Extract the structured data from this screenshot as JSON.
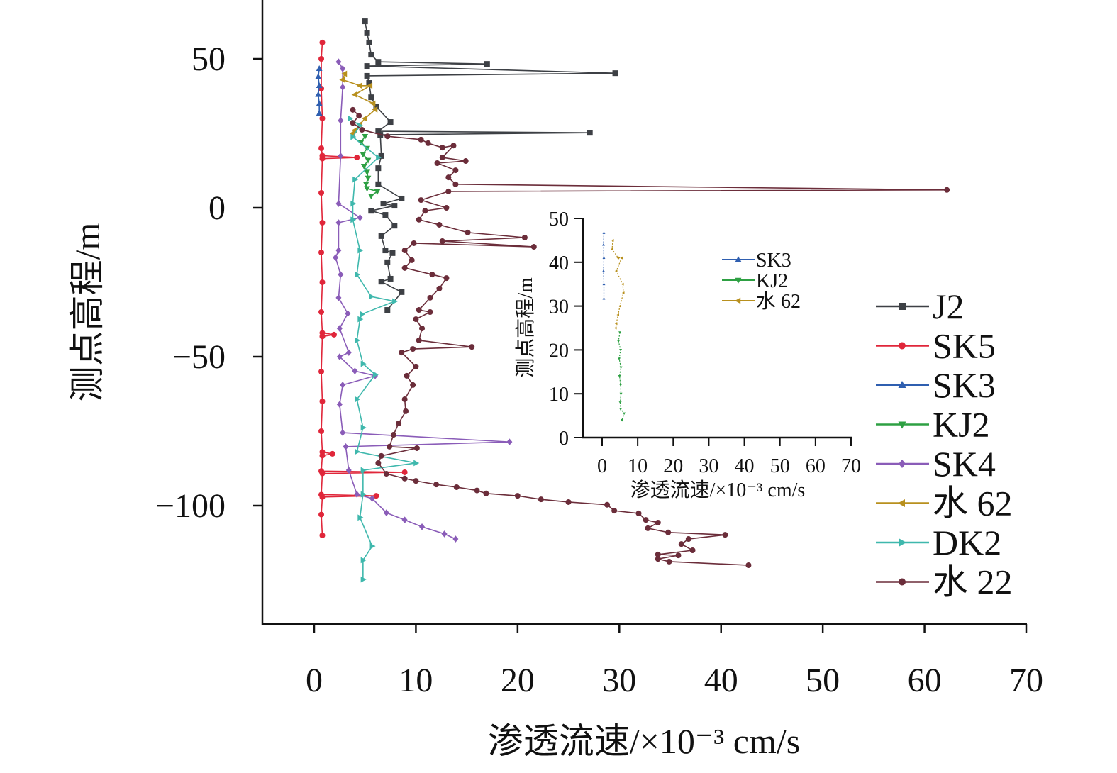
{
  "chart_data": {
    "type": "line",
    "xlabel": "渗透流速/×10⁻³ cm/s",
    "ylabel": "测点高程/m",
    "xlim": [
      -5,
      70
    ],
    "ylim": [
      -140,
      70
    ],
    "xticks": [
      0,
      10,
      20,
      30,
      40,
      50,
      60,
      70
    ],
    "yticks": [
      50,
      0,
      -50,
      -100
    ],
    "xtick_labels": [
      "0",
      "10",
      "20",
      "30",
      "40",
      "50",
      "60",
      "70"
    ],
    "ytick_labels": [
      "50",
      "0",
      "−50",
      "−100"
    ],
    "grid": false,
    "legend_position": "right",
    "series": [
      {
        "name": "J2",
        "color": "#3d4045",
        "marker": "square",
        "points": [
          [
            5,
            62.6
          ],
          [
            5.2,
            58.6
          ],
          [
            5.4,
            55.5
          ],
          [
            5.6,
            51.4
          ],
          [
            6.3,
            49
          ],
          [
            17,
            48.3
          ],
          [
            5.2,
            47.6
          ],
          [
            29.6,
            45.2
          ],
          [
            5.2,
            44.3
          ],
          [
            5.4,
            41.9
          ],
          [
            5.6,
            37.1
          ],
          [
            6.1,
            34
          ],
          [
            7.5,
            28.8
          ],
          [
            6.3,
            25.7
          ],
          [
            27.1,
            25.2
          ],
          [
            6.5,
            24.5
          ],
          [
            6.6,
            17.4
          ],
          [
            6.3,
            13.3
          ],
          [
            6.3,
            7.9
          ],
          [
            8.6,
            3.1
          ],
          [
            6.8,
            1.4
          ],
          [
            7.9,
            0.7
          ],
          [
            5.6,
            -1
          ],
          [
            7,
            -2.4
          ],
          [
            7.9,
            -6
          ],
          [
            6.6,
            -9.5
          ],
          [
            7,
            -14.3
          ],
          [
            7.7,
            -15.2
          ],
          [
            7.2,
            -18.3
          ],
          [
            7.5,
            -23.8
          ],
          [
            6.6,
            -24.8
          ],
          [
            8.6,
            -28.3
          ],
          [
            7.2,
            -34.3
          ]
        ]
      },
      {
        "name": "SK5",
        "color": "#e0263a",
        "marker": "circle",
        "points": [
          [
            0.8,
            55.5
          ],
          [
            0.7,
            50
          ],
          [
            0.7,
            40
          ],
          [
            0.8,
            30
          ],
          [
            0.7,
            20
          ],
          [
            0.8,
            17.5
          ],
          [
            4.2,
            16.9
          ],
          [
            0.8,
            16.5
          ],
          [
            0.7,
            5
          ],
          [
            0.8,
            -5
          ],
          [
            0.7,
            -15
          ],
          [
            0.8,
            -25
          ],
          [
            0.7,
            -35
          ],
          [
            0.8,
            -42
          ],
          [
            1.95,
            -42.6
          ],
          [
            0.8,
            -43.2
          ],
          [
            0.7,
            -55
          ],
          [
            0.8,
            -65
          ],
          [
            0.7,
            -75
          ],
          [
            0.8,
            -82
          ],
          [
            1.8,
            -82.6
          ],
          [
            0.8,
            -83.2
          ],
          [
            0.7,
            -88.4
          ],
          [
            8.9,
            -88.8
          ],
          [
            0.8,
            -89.2
          ],
          [
            0.7,
            -96.3
          ],
          [
            6.1,
            -96.7
          ],
          [
            0.8,
            -97.1
          ],
          [
            0.7,
            -103
          ],
          [
            0.8,
            -110
          ]
        ]
      },
      {
        "name": "SK3",
        "color": "#2f5fb0",
        "marker": "triangle-up",
        "points": [
          [
            0.5,
            46.7
          ],
          [
            0.4,
            44
          ],
          [
            0.5,
            41
          ],
          [
            0.4,
            38
          ],
          [
            0.5,
            35
          ],
          [
            0.5,
            31.7
          ]
        ]
      },
      {
        "name": "KJ2",
        "color": "#2ea043",
        "marker": "triangle-down",
        "points": [
          [
            5,
            24
          ],
          [
            4.6,
            22
          ],
          [
            5.2,
            20
          ],
          [
            4.8,
            18
          ],
          [
            5.3,
            16
          ],
          [
            4.9,
            14
          ],
          [
            5.2,
            12
          ],
          [
            5.3,
            10
          ],
          [
            5.1,
            8
          ],
          [
            5.2,
            6.5
          ],
          [
            6.2,
            5.5
          ],
          [
            5.6,
            4
          ]
        ]
      },
      {
        "name": "SK4",
        "color": "#8a5cb8",
        "marker": "diamond",
        "points": [
          [
            2.4,
            49
          ],
          [
            2.8,
            46.7
          ],
          [
            2.8,
            40.5
          ],
          [
            2.6,
            29.3
          ],
          [
            2.6,
            17.4
          ],
          [
            2.4,
            1.4
          ],
          [
            4.5,
            -3.3
          ],
          [
            2.4,
            -5
          ],
          [
            2.4,
            -14.3
          ],
          [
            2.1,
            -16.7
          ],
          [
            2.6,
            -22.4
          ],
          [
            2.4,
            -30.2
          ],
          [
            3.3,
            -35.5
          ],
          [
            2.5,
            -40.5
          ],
          [
            3.4,
            -48.6
          ],
          [
            2.5,
            -50
          ],
          [
            4,
            -54.8
          ],
          [
            6,
            -56.4
          ],
          [
            2.8,
            -59.5
          ],
          [
            2.5,
            -66
          ],
          [
            2.8,
            -75.5
          ],
          [
            19.2,
            -78.6
          ],
          [
            3.1,
            -80.2
          ],
          [
            3.4,
            -88.1
          ],
          [
            4.2,
            -96.2
          ],
          [
            5.7,
            -97.6
          ],
          [
            7.1,
            -102.4
          ],
          [
            8.9,
            -104.8
          ],
          [
            10.6,
            -107.1
          ],
          [
            12.8,
            -109.5
          ],
          [
            13.9,
            -111.2
          ]
        ]
      },
      {
        "name": "水 62",
        "color": "#b8901e",
        "marker": "triangle-left",
        "points": [
          [
            3,
            45
          ],
          [
            2.8,
            43
          ],
          [
            4.5,
            41
          ],
          [
            5.5,
            41
          ],
          [
            4,
            38
          ],
          [
            5.8,
            35
          ],
          [
            6,
            33
          ],
          [
            5,
            30
          ],
          [
            4.5,
            28
          ],
          [
            4,
            26
          ],
          [
            3.8,
            25
          ]
        ]
      },
      {
        "name": "DK2",
        "color": "#3fb8ad",
        "marker": "triangle-right",
        "points": [
          [
            3.5,
            30
          ],
          [
            4.5,
            27.6
          ],
          [
            3.8,
            23.8
          ],
          [
            6.3,
            16.9
          ],
          [
            4,
            9.5
          ],
          [
            3.8,
            1.4
          ],
          [
            3.8,
            -4
          ],
          [
            4.5,
            -14.3
          ],
          [
            4.2,
            -22.4
          ],
          [
            5.6,
            -29.8
          ],
          [
            7.9,
            -31.4
          ],
          [
            4.7,
            -35.7
          ],
          [
            4.5,
            -37.4
          ],
          [
            4.2,
            -44.5
          ],
          [
            4.8,
            -52.4
          ],
          [
            6,
            -56
          ],
          [
            4.2,
            -64.3
          ],
          [
            4.8,
            -73.8
          ],
          [
            4.2,
            -81.9
          ],
          [
            10,
            -85.7
          ],
          [
            4.8,
            -88.1
          ],
          [
            4.8,
            -96.2
          ],
          [
            4.5,
            -104
          ],
          [
            5.7,
            -113.6
          ],
          [
            4.8,
            -118.3
          ],
          [
            4.8,
            -124.8
          ]
        ]
      },
      {
        "name": "水 22",
        "color": "#6b2d3a",
        "marker": "circle",
        "points": [
          [
            3.8,
            32.9
          ],
          [
            4.4,
            30.9
          ],
          [
            3.8,
            28.5
          ],
          [
            4.7,
            26.2
          ],
          [
            7.2,
            24
          ],
          [
            10.5,
            22.9
          ],
          [
            11.2,
            21.7
          ],
          [
            12.6,
            20.2
          ],
          [
            13.7,
            20.9
          ],
          [
            12.6,
            16.9
          ],
          [
            14.9,
            15.7
          ],
          [
            12.1,
            15
          ],
          [
            13.9,
            12.6
          ],
          [
            13.2,
            10.2
          ],
          [
            13.9,
            7.9
          ],
          [
            62.2,
            6
          ],
          [
            13.2,
            5.5
          ],
          [
            10.5,
            2.6
          ],
          [
            13,
            0
          ],
          [
            10.9,
            -1
          ],
          [
            10.3,
            -4
          ],
          [
            12.3,
            -5.7
          ],
          [
            15.1,
            -8.3
          ],
          [
            20.7,
            -10
          ],
          [
            12.6,
            -11.2
          ],
          [
            21.6,
            -13.1
          ],
          [
            9.8,
            -11.9
          ],
          [
            8.9,
            -14.3
          ],
          [
            9.6,
            -17.6
          ],
          [
            8.9,
            -20.2
          ],
          [
            11.6,
            -22.4
          ],
          [
            13,
            -23.6
          ],
          [
            12.3,
            -27.1
          ],
          [
            11.4,
            -30.2
          ],
          [
            10.3,
            -34.3
          ],
          [
            11.4,
            -35
          ],
          [
            10,
            -37.4
          ],
          [
            10.6,
            -40.5
          ],
          [
            10.3,
            -44.5
          ],
          [
            15.5,
            -46.7
          ],
          [
            9.7,
            -47.4
          ],
          [
            8.6,
            -48.6
          ],
          [
            10,
            -53.3
          ],
          [
            9.1,
            -56.4
          ],
          [
            9.7,
            -59.5
          ],
          [
            8.9,
            -64.3
          ],
          [
            9,
            -68.3
          ],
          [
            8.3,
            -72.4
          ],
          [
            7.8,
            -76.2
          ],
          [
            7.4,
            -80.2
          ],
          [
            10.1,
            -80.7
          ],
          [
            6.6,
            -83.3
          ],
          [
            6.3,
            -85.7
          ],
          [
            7.1,
            -89.3
          ],
          [
            8.9,
            -90.9
          ],
          [
            10,
            -91.7
          ],
          [
            12,
            -92.9
          ],
          [
            14,
            -93.8
          ],
          [
            16,
            -94.9
          ],
          [
            16.9,
            -95.9
          ],
          [
            20,
            -96.7
          ],
          [
            22.3,
            -97.9
          ],
          [
            25,
            -98.8
          ],
          [
            28.8,
            -99.7
          ],
          [
            29.5,
            -101.7
          ],
          [
            31.9,
            -102.6
          ],
          [
            32.6,
            -104.8
          ],
          [
            33.8,
            -105.7
          ],
          [
            32.8,
            -107.6
          ],
          [
            34.8,
            -109
          ],
          [
            40.4,
            -109.8
          ],
          [
            36.8,
            -111.2
          ],
          [
            36.1,
            -112.9
          ],
          [
            37.2,
            -115
          ],
          [
            33.8,
            -116.4
          ],
          [
            35.8,
            -116.7
          ],
          [
            33.8,
            -117.9
          ],
          [
            34.9,
            -118.8
          ],
          [
            42.7,
            -120
          ]
        ]
      }
    ],
    "inset": {
      "xlabel": "渗透流速/×10⁻³ cm/s",
      "ylabel": "测点高程/m",
      "xlim": [
        -5,
        70
      ],
      "ylim": [
        0,
        50
      ],
      "xticks": [
        0,
        10,
        20,
        30,
        40,
        50,
        60,
        70
      ],
      "yticks": [
        0,
        10,
        20,
        30,
        40,
        50
      ],
      "xtick_labels": [
        "0",
        "10",
        "20",
        "30",
        "40",
        "50",
        "60",
        "70"
      ],
      "ytick_labels": [
        "0",
        "10",
        "20",
        "30",
        "40",
        "50"
      ],
      "series_names": [
        "SK3",
        "KJ2",
        "水 62"
      ],
      "legend_position": "top-right"
    }
  }
}
